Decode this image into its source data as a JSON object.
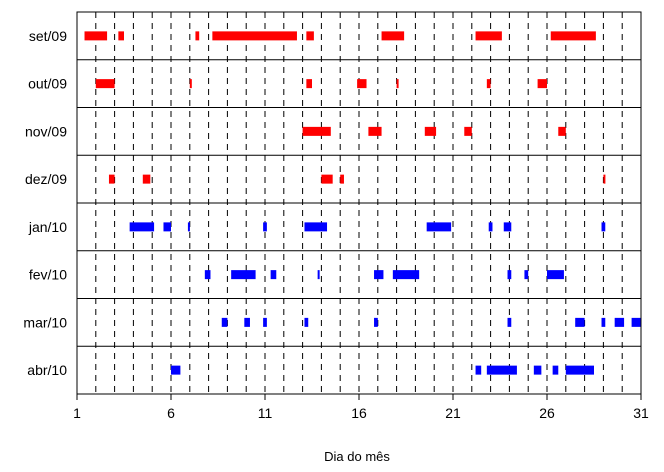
{
  "chart_data": {
    "type": "timeline",
    "title": "",
    "xlabel": "Dia do mês",
    "ylabel": "",
    "xlim": [
      1,
      31
    ],
    "x_ticks": [
      "1",
      "6",
      "11",
      "16",
      "21",
      "26",
      "31"
    ],
    "grid": "dashed vertical lines at each day",
    "rows": [
      {
        "label": "set/09",
        "color": "#ff0000",
        "segments": [
          [
            1.4,
            2.6
          ],
          [
            3.2,
            3.5
          ],
          [
            7.3,
            7.5
          ],
          [
            8.2,
            12.7
          ],
          [
            13.2,
            13.6
          ],
          [
            17.2,
            18.4
          ],
          [
            22.2,
            23.6
          ],
          [
            26.2,
            28.6
          ]
        ]
      },
      {
        "label": "out/09",
        "color": "#ff0000",
        "segments": [
          [
            2.0,
            3.0
          ],
          [
            7.0,
            7.1
          ],
          [
            13.2,
            13.5
          ],
          [
            15.9,
            16.4
          ],
          [
            18.0,
            18.1
          ],
          [
            22.8,
            23.0
          ],
          [
            25.5,
            26.0
          ]
        ]
      },
      {
        "label": "nov/09",
        "color": "#ff0000",
        "segments": [
          [
            13.0,
            14.5
          ],
          [
            16.5,
            17.2
          ],
          [
            19.5,
            20.1
          ],
          [
            21.6,
            22.0
          ],
          [
            26.6,
            27.0
          ]
        ]
      },
      {
        "label": "dez/09",
        "color": "#ff0000",
        "segments": [
          [
            2.7,
            3.0
          ],
          [
            4.5,
            4.9
          ],
          [
            14.0,
            14.6
          ],
          [
            15.0,
            15.2
          ],
          [
            29.0,
            29.1
          ]
        ]
      },
      {
        "label": "jan/10",
        "color": "#0000ff",
        "segments": [
          [
            3.8,
            5.1
          ],
          [
            5.6,
            6.0
          ],
          [
            6.9,
            7.0
          ],
          [
            10.9,
            11.1
          ],
          [
            13.1,
            14.3
          ],
          [
            19.6,
            20.9
          ],
          [
            22.9,
            23.1
          ],
          [
            23.7,
            24.1
          ],
          [
            28.9,
            29.1
          ]
        ]
      },
      {
        "label": "fev/10",
        "color": "#0000ff",
        "segments": [
          [
            7.8,
            8.1
          ],
          [
            9.2,
            10.5
          ],
          [
            11.3,
            11.6
          ],
          [
            13.8,
            13.9
          ],
          [
            16.8,
            17.3
          ],
          [
            17.8,
            19.2
          ],
          [
            23.9,
            24.1
          ],
          [
            24.8,
            25.0
          ],
          [
            26.0,
            26.9
          ]
        ]
      },
      {
        "label": "mar/10",
        "color": "#0000ff",
        "segments": [
          [
            8.7,
            9.0
          ],
          [
            9.9,
            10.2
          ],
          [
            10.9,
            11.1
          ],
          [
            13.1,
            13.3
          ],
          [
            16.8,
            17.0
          ],
          [
            23.9,
            24.1
          ],
          [
            27.5,
            28.0
          ],
          [
            28.9,
            29.1
          ],
          [
            29.6,
            30.1
          ],
          [
            30.5,
            31.0
          ]
        ]
      },
      {
        "label": "abr/10",
        "color": "#0000ff",
        "segments": [
          [
            6.0,
            6.5
          ],
          [
            22.2,
            22.5
          ],
          [
            22.8,
            24.4
          ],
          [
            25.3,
            25.7
          ],
          [
            26.3,
            26.6
          ],
          [
            27.0,
            28.5
          ]
        ]
      }
    ]
  }
}
